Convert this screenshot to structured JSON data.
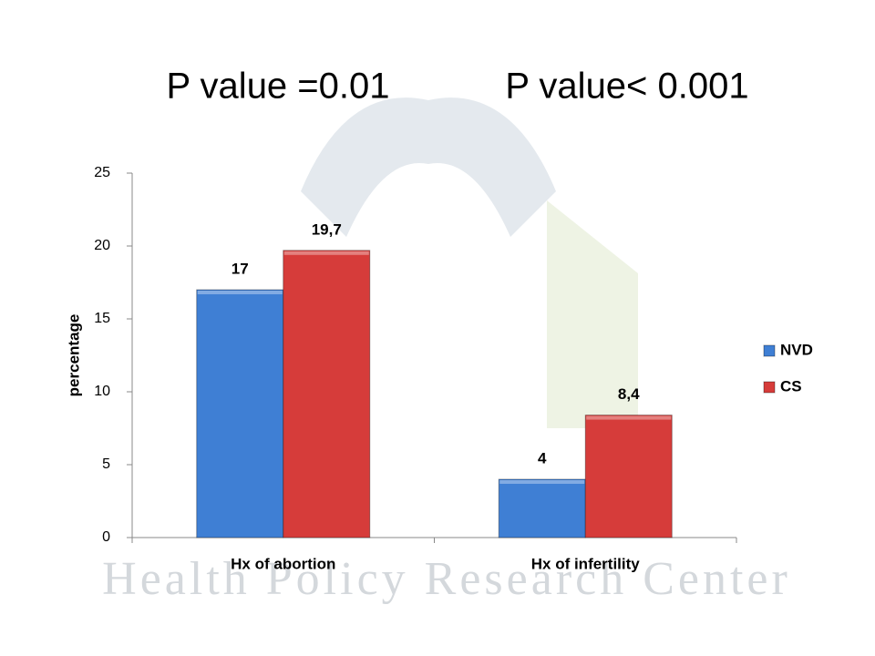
{
  "chart_data": {
    "type": "bar",
    "annotations": [
      "P value =0.01",
      "P value< 0.001"
    ],
    "watermark": "Health Policy Research Center",
    "categories": [
      "Hx of abortion",
      "Hx of infertility"
    ],
    "series": [
      {
        "name": "NVD",
        "color": "#3f7fd4",
        "values": [
          17,
          4
        ],
        "value_labels": [
          "17",
          "4"
        ]
      },
      {
        "name": "CS",
        "color": "#d63c3a",
        "values": [
          19.7,
          8.4
        ],
        "value_labels": [
          "19,7",
          "8,4"
        ]
      }
    ],
    "y_label": "percentage",
    "ylim": [
      0,
      25
    ],
    "yticks": [
      0,
      5,
      10,
      15,
      20,
      25
    ],
    "legend": "right"
  }
}
